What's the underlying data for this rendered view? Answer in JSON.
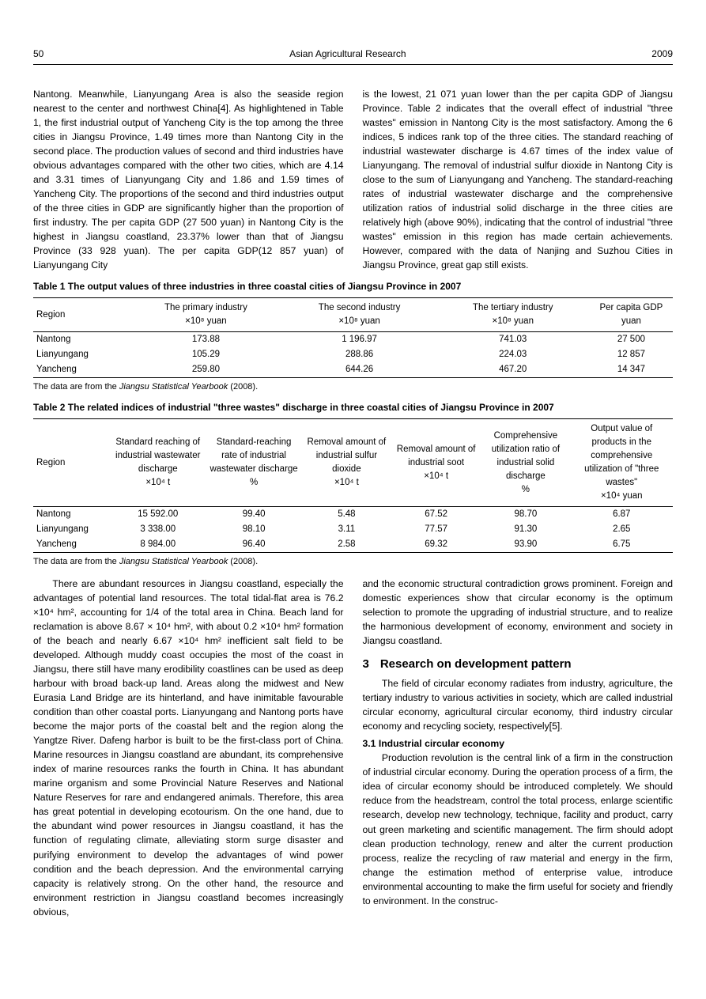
{
  "header": {
    "page": "50",
    "journal": "Asian Agricultural Research",
    "year": "2009"
  },
  "para1_left": "Nantong. Meanwhile, Lianyungang Area is also the seaside region nearest to the center and northwest China[4]. As highlightened in Table 1, the first industrial output of Yancheng City is the top among the three cities in Jiangsu Province, 1.49 times more than Nantong City in the second place. The production values of second and third industries have obvious advantages compared with the other two cities, which are 4.14 and 3.31 times of Lianyungang City and 1.86 and 1.59 times of Yancheng City. The proportions of the second and third industries output of the three cities in GDP are significantly higher than the proportion of first industry. The per capita GDP (27 500 yuan) in Nantong City is the highest in Jiangsu coastland, 23.37% lower than that of Jiangsu Province (33 928 yuan). The per capita GDP(12 857 yuan) of Lianyungang City",
  "para1_right": "is the lowest, 21 071 yuan lower than the per capita GDP of Jiangsu Province. Table 2 indicates that the overall effect of industrial \"three wastes\" emission in Nantong City is the most satisfactory. Among the 6 indices, 5 indices rank top of the three cities. The standard reaching of industrial wastewater discharge is 4.67 times of the index value of Lianyungang. The removal of industrial sulfur dioxide in Nantong City is close to the sum of Lianyungang and Yancheng. The standard-reaching rates of industrial wastewater discharge and the comprehensive utilization ratios of industrial solid discharge in the three cities are relatively high (above 90%), indicating that the control of industrial \"three wastes\" emission in this region has made certain achievements. However, compared with the data of Nanjing and Suzhou Cities in Jiangsu Province, great gap still exists.",
  "table1": {
    "caption": "Table 1   The output values of three industries in three coastal cities of Jiangsu Province in 2007",
    "headers": [
      "Region",
      "The primary industry\n×10⁸ yuan",
      "The second industry\n×10⁸ yuan",
      "The tertiary industry\n×10⁸ yuan",
      "Per capita GDP\nyuan"
    ],
    "rows": [
      [
        "Nantong",
        "173.88",
        "1 196.97",
        "741.03",
        "27 500"
      ],
      [
        "Lianyungang",
        "105.29",
        "288.86",
        "224.03",
        "12 857"
      ],
      [
        "Yancheng",
        "259.80",
        "644.26",
        "467.20",
        "14 347"
      ]
    ],
    "footnote": "The data are from the Jiangsu Statistical Yearbook (2008)."
  },
  "table2": {
    "caption": "Table 2   The related indices of industrial \"three wastes\" discharge in three coastal cities of Jiangsu Province in 2007",
    "headers": [
      "Region",
      "Standard reaching of industrial wastewater discharge\n×10⁴ t",
      "Standard-reaching rate of industrial wastewater discharge\n%",
      "Removal amount of industrial sulfur dioxide\n×10⁴ t",
      "Removal amount of industrial soot\n×10⁴ t",
      "Comprehensive utilization ratio of industrial solid discharge\n%",
      "Output value of products in the comprehensive utilization of \"three wastes\"\n×10⁴ yuan"
    ],
    "rows": [
      [
        "Nantong",
        "15 592.00",
        "99.40",
        "5.48",
        "67.52",
        "98.70",
        "6.87"
      ],
      [
        "Lianyungang",
        "3 338.00",
        "98.10",
        "3.11",
        "77.57",
        "91.30",
        "2.65"
      ],
      [
        "Yancheng",
        "8 984.00",
        "96.40",
        "2.58",
        "69.32",
        "93.90",
        "6.75"
      ]
    ],
    "footnote": "The data are from the Jiangsu Statistical Yearbook (2008)."
  },
  "para2_left": "There are abundant resources in Jiangsu coastland, especially the advantages of potential land resources. The total tidal-flat area is 76.2 ×10⁴ hm², accounting for 1/4 of the total area in China. Beach land for reclamation is above 8.67 × 10⁴ hm², with about 0.2 ×10⁴ hm² formation of the beach and nearly 6.67 ×10⁴ hm² inefficient salt field to be developed. Although muddy coast occupies the most of the coast in Jiangsu, there still have many erodibility coastlines can be used as deep harbour with broad back-up land. Areas along the midwest and New Eurasia Land Bridge are its hinterland, and have inimitable favourable condition than other coastal ports. Lianyungang and Nantong ports have become the major ports of the coastal belt and the region along the Yangtze River. Dafeng harbor is built to be the first-class port of China. Marine resources in Jiangsu coastland are abundant, its comprehensive index of marine resources ranks the fourth in China. It has abundant marine organism and some Provincial Nature Reserves and National Nature Reserves for rare and endangered animals. Therefore, this area has great potential in developing ecotourism. On the one hand, due to the abundant wind power resources in Jiangsu coastland, it has the function of regulating climate, alleviating storm surge disaster and purifying environment to develop the advantages of wind power condition and the beach depression. And the environmental carrying capacity is relatively strong. On the other hand, the resource and environment restriction in Jiangsu coastland becomes increasingly obvious,",
  "para2_right_top": "and the economic structural contradiction grows prominent. Foreign and domestic experiences show that circular economy is the optimum selection to promote the upgrading of industrial structure, and to realize the harmonious development of economy, environment and society in Jiangsu coastland.",
  "section3": {
    "num": "3",
    "title": "Research on development pattern",
    "intro": "The field of circular economy radiates from industry, agriculture, the tertiary industry to various activities in society, which are called industrial circular economy, agricultural circular economy, third industry circular economy and recycling society, respectively[5].",
    "sub1_title": "3.1   Industrial circular economy",
    "sub1_body": "Production revolution is the central link of a firm in the construction of industrial circular economy. During the operation process of a firm, the idea of circular economy should be introduced completely. We should reduce from the headstream, control the total process, enlarge scientific research, develop new technology, technique, facility and product, carry out green marketing and scientific management. The firm should adopt clean production technology, renew and alter the current production process, realize the recycling of raw material and energy in the firm, change the estimation method of enterprise value, introduce environmental accounting to make the firm useful for society and friendly to environment. In the construc-"
  }
}
